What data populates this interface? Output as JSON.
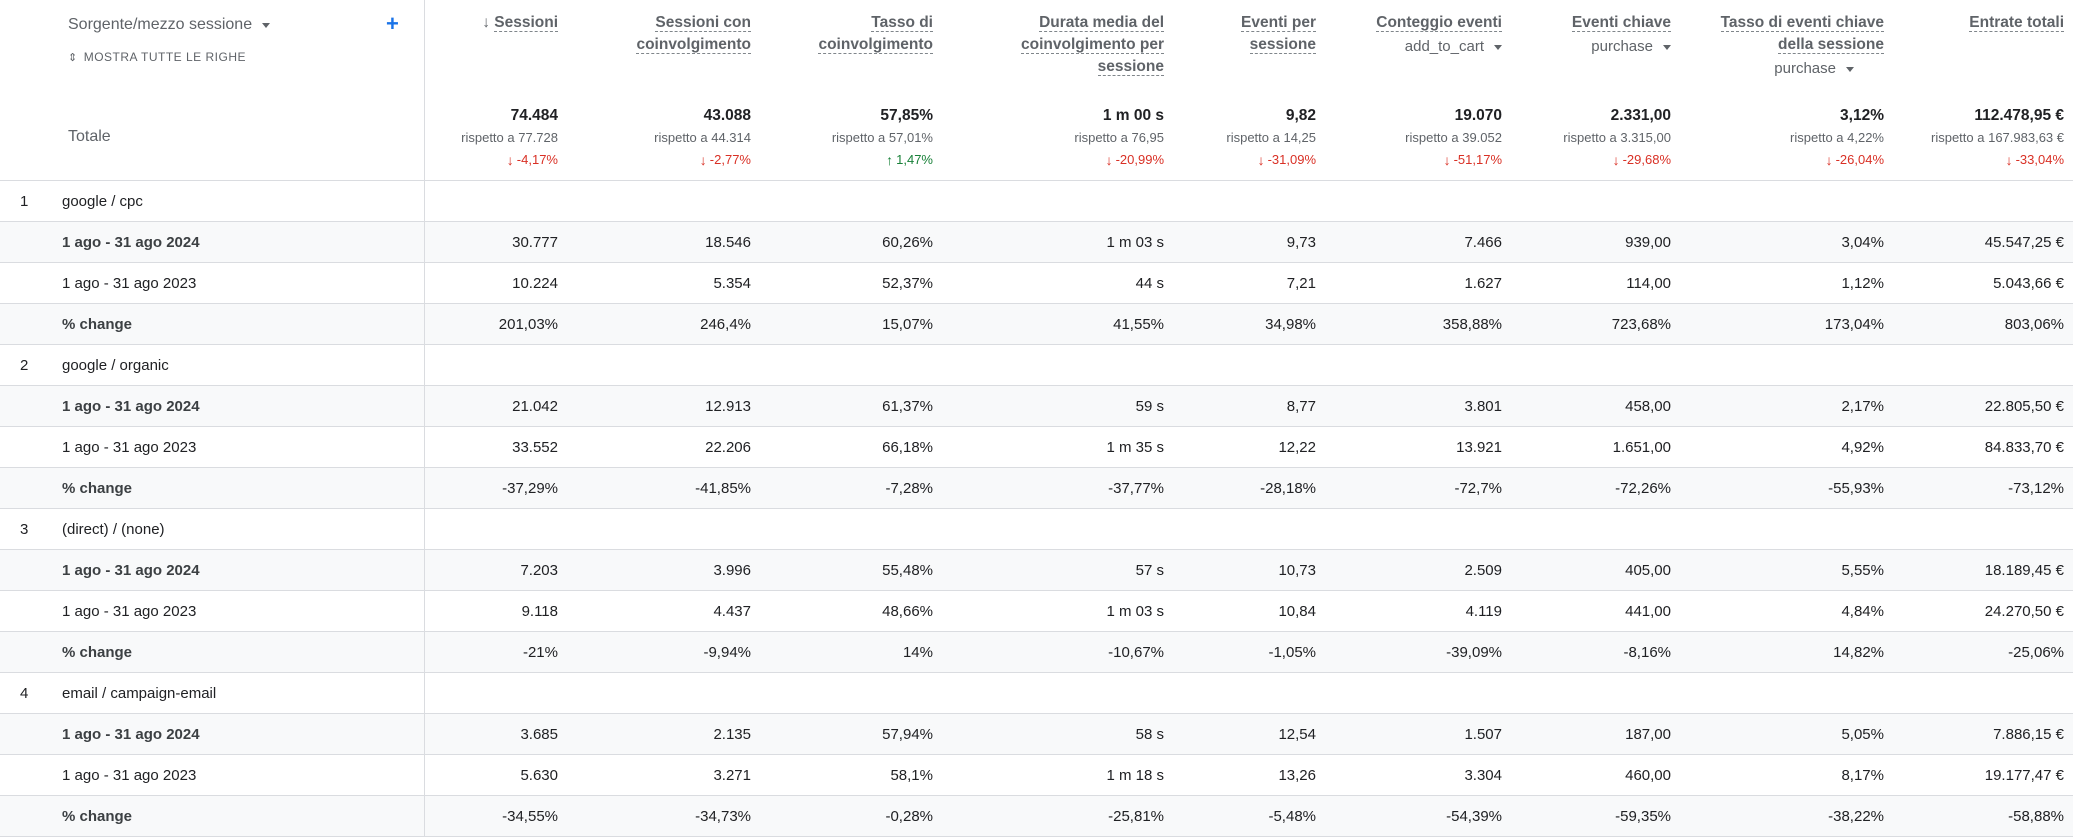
{
  "header": {
    "dimension_label": "Sorgente/mezzo sessione",
    "show_all": "MOSTRA TUTTE LE RIGHE",
    "columns": [
      {
        "label": "Sessioni",
        "sorted": "desc"
      },
      {
        "label1": "Sessioni con",
        "label2": "coinvolgimento"
      },
      {
        "label1": "Tasso di",
        "label2": "coinvolgimento"
      },
      {
        "label1": "Durata media del",
        "label2": "coinvolgimento per",
        "label3": "sessione"
      },
      {
        "label1": "Eventi per",
        "label2": "sessione"
      },
      {
        "label": "Conteggio eventi",
        "select": "add_to_cart"
      },
      {
        "label": "Eventi chiave",
        "select": "purchase"
      },
      {
        "label1": "Tasso di eventi chiave",
        "label2": "della sessione",
        "select": "purchase"
      },
      {
        "label": "Entrate totali"
      }
    ]
  },
  "totals": {
    "label": "Totale",
    "cells": [
      {
        "value": "74.484",
        "compare": "rispetto a 77.728",
        "delta": "-4,17%",
        "dir": "down"
      },
      {
        "value": "43.088",
        "compare": "rispetto a 44.314",
        "delta": "-2,77%",
        "dir": "down"
      },
      {
        "value": "57,85%",
        "compare": "rispetto a 57,01%",
        "delta": "1,47%",
        "dir": "up"
      },
      {
        "value": "1 m 00 s",
        "compare": "rispetto a 76,95",
        "delta": "-20,99%",
        "dir": "down"
      },
      {
        "value": "9,82",
        "compare": "rispetto a 14,25",
        "delta": "-31,09%",
        "dir": "down"
      },
      {
        "value": "19.070",
        "compare": "rispetto a 39.052",
        "delta": "-51,17%",
        "dir": "down"
      },
      {
        "value": "2.331,00",
        "compare": "rispetto a 3.315,00",
        "delta": "-29,68%",
        "dir": "down"
      },
      {
        "value": "3,12%",
        "compare": "rispetto a 4,22%",
        "delta": "-26,04%",
        "dir": "down"
      },
      {
        "value": "112.478,95 €",
        "compare": "rispetto a 167.983,63 €",
        "delta": "-33,04%",
        "dir": "down"
      }
    ]
  },
  "groups": [
    {
      "index": "1",
      "name": "google / cpc",
      "rows": [
        {
          "label": "1 ago - 31 ago 2024",
          "values": [
            "30.777",
            "18.546",
            "60,26%",
            "1 m 03 s",
            "9,73",
            "7.466",
            "939,00",
            "3,04%",
            "45.547,25 €"
          ]
        },
        {
          "label": "1 ago - 31 ago 2023",
          "values": [
            "10.224",
            "5.354",
            "52,37%",
            "44 s",
            "7,21",
            "1.627",
            "114,00",
            "1,12%",
            "5.043,66 €"
          ]
        },
        {
          "label": "% change",
          "values": [
            "201,03%",
            "246,4%",
            "15,07%",
            "41,55%",
            "34,98%",
            "358,88%",
            "723,68%",
            "173,04%",
            "803,06%"
          ]
        }
      ]
    },
    {
      "index": "2",
      "name": "google / organic",
      "rows": [
        {
          "label": "1 ago - 31 ago 2024",
          "values": [
            "21.042",
            "12.913",
            "61,37%",
            "59 s",
            "8,77",
            "3.801",
            "458,00",
            "2,17%",
            "22.805,50 €"
          ]
        },
        {
          "label": "1 ago - 31 ago 2023",
          "values": [
            "33.552",
            "22.206",
            "66,18%",
            "1 m 35 s",
            "12,22",
            "13.921",
            "1.651,00",
            "4,92%",
            "84.833,70 €"
          ]
        },
        {
          "label": "% change",
          "values": [
            "-37,29%",
            "-41,85%",
            "-7,28%",
            "-37,77%",
            "-28,18%",
            "-72,7%",
            "-72,26%",
            "-55,93%",
            "-73,12%"
          ]
        }
      ]
    },
    {
      "index": "3",
      "name": "(direct) / (none)",
      "rows": [
        {
          "label": "1 ago - 31 ago 2024",
          "values": [
            "7.203",
            "3.996",
            "55,48%",
            "57 s",
            "10,73",
            "2.509",
            "405,00",
            "5,55%",
            "18.189,45 €"
          ]
        },
        {
          "label": "1 ago - 31 ago 2023",
          "values": [
            "9.118",
            "4.437",
            "48,66%",
            "1 m 03 s",
            "10,84",
            "4.119",
            "441,00",
            "4,84%",
            "24.270,50 €"
          ]
        },
        {
          "label": "% change",
          "values": [
            "-21%",
            "-9,94%",
            "14%",
            "-10,67%",
            "-1,05%",
            "-39,09%",
            "-8,16%",
            "14,82%",
            "-25,06%"
          ]
        }
      ]
    },
    {
      "index": "4",
      "name": "email / campaign-email",
      "rows": [
        {
          "label": "1 ago - 31 ago 2024",
          "values": [
            "3.685",
            "2.135",
            "57,94%",
            "58 s",
            "12,54",
            "1.507",
            "187,00",
            "5,05%",
            "7.886,15 €"
          ]
        },
        {
          "label": "1 ago - 31 ago 2023",
          "values": [
            "5.630",
            "3.271",
            "58,1%",
            "1 m 18 s",
            "13,26",
            "3.304",
            "460,00",
            "8,17%",
            "19.177,47 €"
          ]
        },
        {
          "label": "% change",
          "values": [
            "-34,55%",
            "-34,73%",
            "-0,28%",
            "-25,81%",
            "-5,48%",
            "-54,39%",
            "-59,35%",
            "-38,22%",
            "-58,88%"
          ]
        }
      ]
    }
  ]
}
